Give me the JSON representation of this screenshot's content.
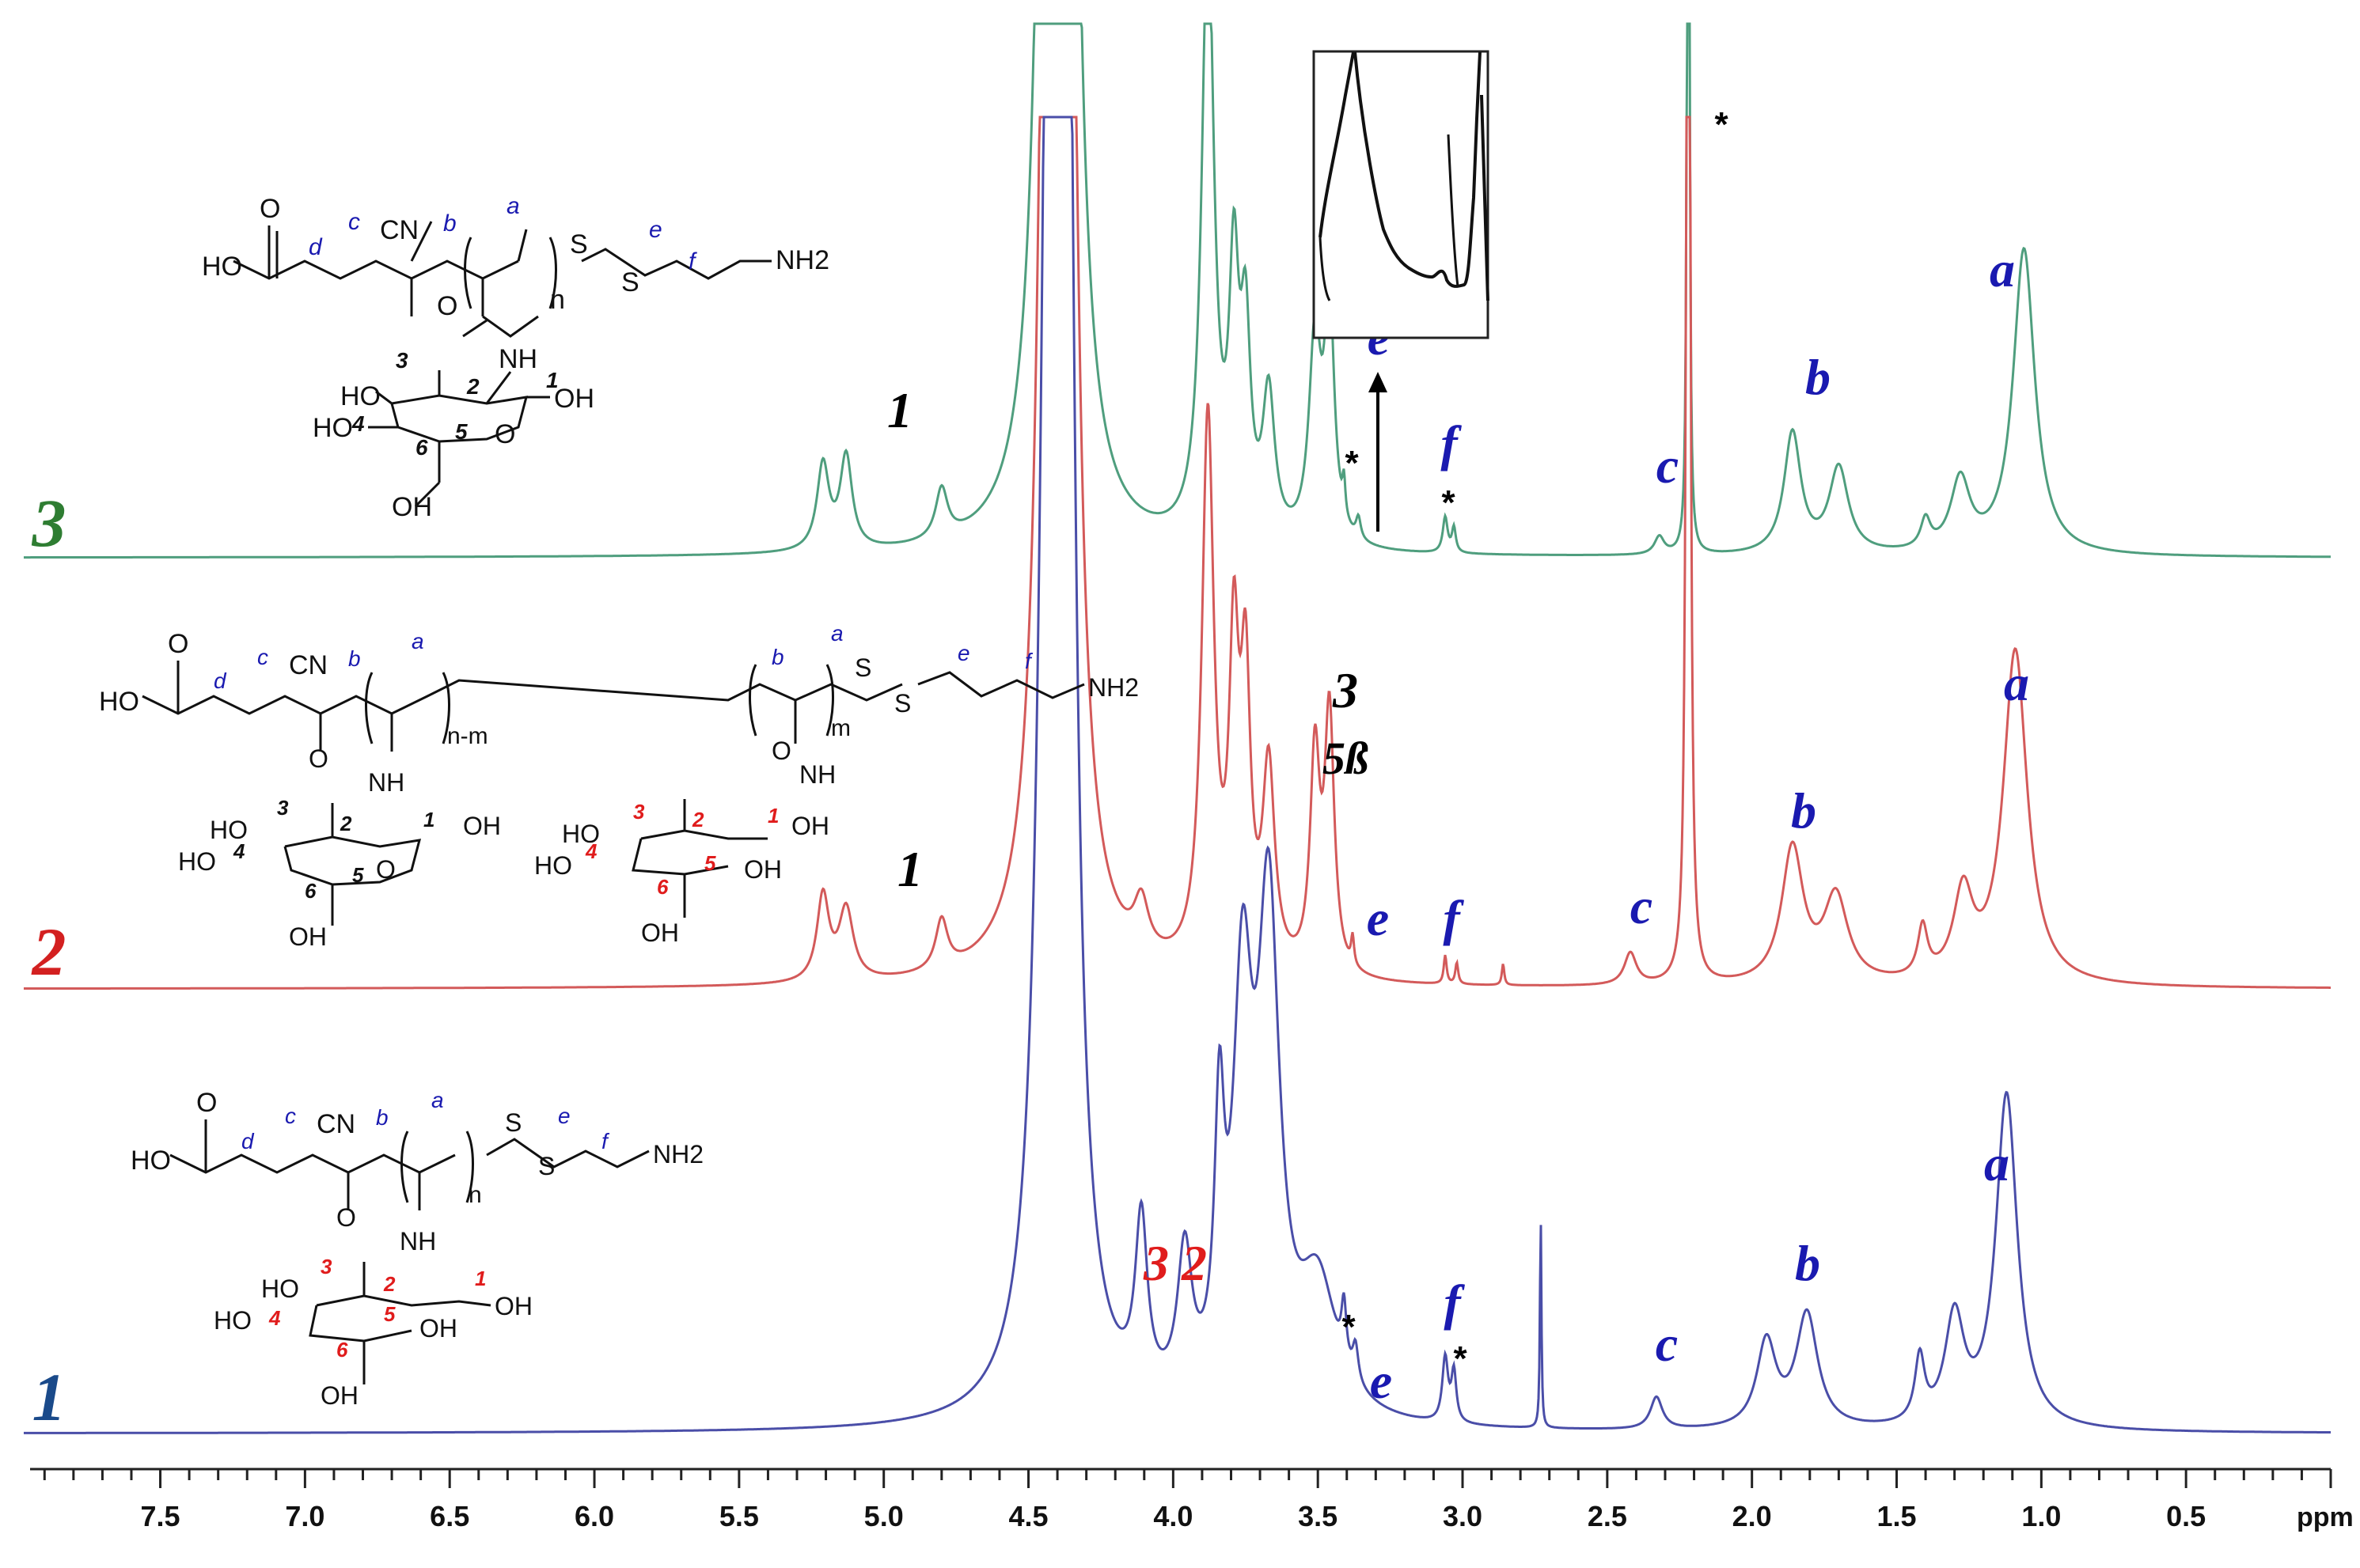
{
  "chart_data": {
    "type": "line",
    "x_axis": {
      "unit_label": "ppm",
      "reversed": true,
      "range": [
        7.95,
        0.0
      ],
      "major_ticks": [
        7.5,
        7.0,
        6.5,
        6.0,
        5.5,
        5.0,
        4.5,
        4.0,
        3.5,
        3.0,
        2.5,
        2.0,
        1.5,
        1.0,
        0.5
      ],
      "tick_labels": [
        "7.5",
        "7.0",
        "6.5",
        "6.0",
        "5.5",
        "5.0",
        "4.5",
        "4.0",
        "3.5",
        "3.0",
        "2.5",
        "2.0",
        "1.5",
        "1.0",
        "0.5"
      ],
      "minor_step": 0.1
    },
    "colors": {
      "spectrum_3": "#4f9e7e",
      "spectrum_2": "#d35a5a",
      "spectrum_1": "#4a4ea8",
      "blue_label": "#1a1ab0",
      "red_label": "#e01c1c",
      "black_label": "#000000"
    },
    "series": [
      {
        "name": "3",
        "label_color": "#2e7d32",
        "peaks": [
          {
            "ppm": 5.21,
            "h": 0.12,
            "w": 0.025
          },
          {
            "ppm": 5.13,
            "h": 0.13,
            "w": 0.025
          },
          {
            "ppm": 4.8,
            "h": 0.07,
            "w": 0.025
          },
          {
            "ppm": 4.42,
            "h": 3.0,
            "w": 0.03
          },
          {
            "ppm": 4.37,
            "h": 2.2,
            "w": 0.03
          },
          {
            "ppm": 3.88,
            "h": 0.87,
            "w": 0.025
          },
          {
            "ppm": 3.79,
            "h": 0.35,
            "w": 0.02
          },
          {
            "ppm": 3.75,
            "h": 0.27,
            "w": 0.02
          },
          {
            "ppm": 3.67,
            "h": 0.2,
            "w": 0.025
          },
          {
            "ppm": 3.51,
            "h": 0.28,
            "w": 0.025
          },
          {
            "ppm": 3.46,
            "h": 0.33,
            "w": 0.02
          },
          {
            "ppm": 3.41,
            "h": 0.05,
            "w": 0.006
          },
          {
            "ppm": 3.36,
            "h": 0.03,
            "w": 0.01
          },
          {
            "ppm": 3.06,
            "h": 0.05,
            "w": 0.01
          },
          {
            "ppm": 3.03,
            "h": 0.035,
            "w": 0.008
          },
          {
            "ppm": 2.32,
            "h": 0.025,
            "w": 0.02
          },
          {
            "ppm": 2.22,
            "h": 3.0,
            "w": 0.003
          },
          {
            "ppm": 1.86,
            "h": 0.17,
            "w": 0.035
          },
          {
            "ppm": 1.7,
            "h": 0.12,
            "w": 0.04
          },
          {
            "ppm": 1.4,
            "h": 0.04,
            "w": 0.02
          },
          {
            "ppm": 1.28,
            "h": 0.1,
            "w": 0.04
          },
          {
            "ppm": 1.06,
            "h": 0.43,
            "w": 0.045
          }
        ]
      },
      {
        "name": "2",
        "label_color": "#d32020",
        "peaks": [
          {
            "ppm": 5.21,
            "h": 0.12,
            "w": 0.025
          },
          {
            "ppm": 5.13,
            "h": 0.1,
            "w": 0.03
          },
          {
            "ppm": 4.8,
            "h": 0.07,
            "w": 0.025
          },
          {
            "ppm": 4.42,
            "h": 3.0,
            "w": 0.03
          },
          {
            "ppm": 4.37,
            "h": 2.2,
            "w": 0.03
          },
          {
            "ppm": 4.11,
            "h": 0.07,
            "w": 0.03
          },
          {
            "ppm": 3.88,
            "h": 0.77,
            "w": 0.025
          },
          {
            "ppm": 3.79,
            "h": 0.42,
            "w": 0.02
          },
          {
            "ppm": 3.75,
            "h": 0.38,
            "w": 0.02
          },
          {
            "ppm": 3.67,
            "h": 0.28,
            "w": 0.025
          },
          {
            "ppm": 3.51,
            "h": 0.3,
            "w": 0.02
          },
          {
            "ppm": 3.46,
            "h": 0.36,
            "w": 0.02
          },
          {
            "ppm": 3.38,
            "h": 0.04,
            "w": 0.006
          },
          {
            "ppm": 3.06,
            "h": 0.04,
            "w": 0.006
          },
          {
            "ppm": 3.02,
            "h": 0.03,
            "w": 0.006
          },
          {
            "ppm": 2.86,
            "h": 0.03,
            "w": 0.005
          },
          {
            "ppm": 2.42,
            "h": 0.045,
            "w": 0.025
          },
          {
            "ppm": 2.22,
            "h": 2.8,
            "w": 0.006
          },
          {
            "ppm": 1.86,
            "h": 0.19,
            "w": 0.045
          },
          {
            "ppm": 1.71,
            "h": 0.12,
            "w": 0.05
          },
          {
            "ppm": 1.41,
            "h": 0.07,
            "w": 0.02
          },
          {
            "ppm": 1.27,
            "h": 0.12,
            "w": 0.04
          },
          {
            "ppm": 1.09,
            "h": 0.47,
            "w": 0.05
          }
        ]
      },
      {
        "name": "1",
        "label_color": "#1a4a8a",
        "peaks": [
          {
            "ppm": 4.42,
            "h": 2.6,
            "w": 0.035
          },
          {
            "ppm": 4.37,
            "h": 2.0,
            "w": 0.03
          },
          {
            "ppm": 4.11,
            "h": 0.24,
            "w": 0.025
          },
          {
            "ppm": 3.96,
            "h": 0.2,
            "w": 0.03
          },
          {
            "ppm": 3.84,
            "h": 0.35,
            "w": 0.02
          },
          {
            "ppm": 3.76,
            "h": 0.55,
            "w": 0.04
          },
          {
            "ppm": 3.67,
            "h": 0.68,
            "w": 0.045
          },
          {
            "ppm": 3.5,
            "h": 0.18,
            "w": 0.08
          },
          {
            "ppm": 3.41,
            "h": 0.08,
            "w": 0.01
          },
          {
            "ppm": 3.37,
            "h": 0.05,
            "w": 0.012
          },
          {
            "ppm": 3.06,
            "h": 0.09,
            "w": 0.012
          },
          {
            "ppm": 3.03,
            "h": 0.07,
            "w": 0.01
          },
          {
            "ppm": 2.73,
            "h": 0.3,
            "w": 0.003
          },
          {
            "ppm": 2.33,
            "h": 0.045,
            "w": 0.025
          },
          {
            "ppm": 1.95,
            "h": 0.12,
            "w": 0.04
          },
          {
            "ppm": 1.81,
            "h": 0.16,
            "w": 0.045
          },
          {
            "ppm": 1.42,
            "h": 0.09,
            "w": 0.02
          },
          {
            "ppm": 1.3,
            "h": 0.15,
            "w": 0.04
          },
          {
            "ppm": 1.12,
            "h": 0.47,
            "w": 0.045
          }
        ]
      }
    ],
    "trace_labels": [
      {
        "text": "3",
        "color": "#2e7d32"
      },
      {
        "text": "2",
        "color": "#d32020"
      },
      {
        "text": "1",
        "color": "#1a4a8a"
      }
    ],
    "peak_labels": [
      {
        "text": "a",
        "color": "#1a1ab0",
        "spectrum": "3",
        "ppm": 1.06
      },
      {
        "text": "b",
        "color": "#1a1ab0",
        "spectrum": "3",
        "ppm": 1.86
      },
      {
        "text": "c",
        "color": "#1a1ab0",
        "spectrum": "3",
        "ppm": 2.32
      },
      {
        "text": "f",
        "color": "#1a1ab0",
        "spectrum": "3",
        "ppm": 3.05
      },
      {
        "text": "e",
        "color": "#1a1ab0",
        "spectrum": "3",
        "ppm": 3.36
      },
      {
        "text": "1",
        "color": "#000000",
        "spectrum": "3",
        "ppm": 5.15
      },
      {
        "text": "a",
        "color": "#1a1ab0",
        "spectrum": "2",
        "ppm": 1.09
      },
      {
        "text": "b",
        "color": "#1a1ab0",
        "spectrum": "2",
        "ppm": 1.86
      },
      {
        "text": "c",
        "color": "#1a1ab0",
        "spectrum": "2",
        "ppm": 2.42
      },
      {
        "text": "f",
        "color": "#1a1ab0",
        "spectrum": "2",
        "ppm": 3.05
      },
      {
        "text": "e",
        "color": "#1a1ab0",
        "spectrum": "2",
        "ppm": 3.36
      },
      {
        "text": "3",
        "color": "#000000",
        "spectrum": "2",
        "ppm": 3.48
      },
      {
        "text": "5ß",
        "color": "#000000",
        "spectrum": "2",
        "ppm": 3.48
      },
      {
        "text": "1",
        "color": "#000000",
        "spectrum": "2",
        "ppm": 5.05
      },
      {
        "text": "a",
        "color": "#1a1ab0",
        "spectrum": "1",
        "ppm": 1.12
      },
      {
        "text": "b",
        "color": "#1a1ab0",
        "spectrum": "1",
        "ppm": 1.83
      },
      {
        "text": "c",
        "color": "#1a1ab0",
        "spectrum": "1",
        "ppm": 2.33
      },
      {
        "text": "f",
        "color": "#1a1ab0",
        "spectrum": "1",
        "ppm": 3.05
      },
      {
        "text": "e",
        "color": "#1a1ab0",
        "spectrum": "1",
        "ppm": 3.36
      },
      {
        "text": "3",
        "color": "#e01c1c",
        "spectrum": "1",
        "ppm": 4.11
      },
      {
        "text": "2",
        "color": "#e01c1c",
        "spectrum": "1",
        "ppm": 3.96
      }
    ],
    "impurity_marker": "*",
    "inset": {
      "description_hidden": true
    }
  },
  "structures": {
    "s3": {
      "atoms": [
        "HO",
        "O",
        "CN",
        "NH",
        "O",
        "NH2",
        "S",
        "S",
        "HO",
        "HO",
        "OH",
        "OH",
        "O",
        "n"
      ],
      "locants_blue": [
        "d",
        "c",
        "b",
        "a",
        "e",
        "f"
      ],
      "locants_black": [
        "1",
        "2",
        "3",
        "4",
        "5",
        "6"
      ]
    },
    "s2": {
      "atoms": [
        "HO",
        "O",
        "CN",
        "n-m",
        "m",
        "S",
        "S",
        "NH2",
        "O",
        "NH",
        "O",
        "NH",
        "HO",
        "HO",
        "OH",
        "OH",
        "O",
        "HO",
        "HO",
        "OH",
        "OH",
        "OH"
      ],
      "locants_blue": [
        "d",
        "c",
        "b",
        "a",
        "b",
        "a",
        "e",
        "f"
      ],
      "locants_black": [
        "1",
        "2",
        "3",
        "4",
        "5",
        "6"
      ],
      "locants_red": [
        "1",
        "2",
        "3",
        "4",
        "5",
        "6"
      ]
    },
    "s1": {
      "atoms": [
        "HO",
        "O",
        "CN",
        "n",
        "S",
        "S",
        "NH2",
        "O",
        "NH",
        "HO",
        "HO",
        "OH",
        "OH",
        "OH"
      ],
      "locants_blue": [
        "d",
        "c",
        "b",
        "a",
        "e",
        "f"
      ],
      "locants_red": [
        "1",
        "2",
        "3",
        "4",
        "5",
        "6"
      ]
    }
  }
}
